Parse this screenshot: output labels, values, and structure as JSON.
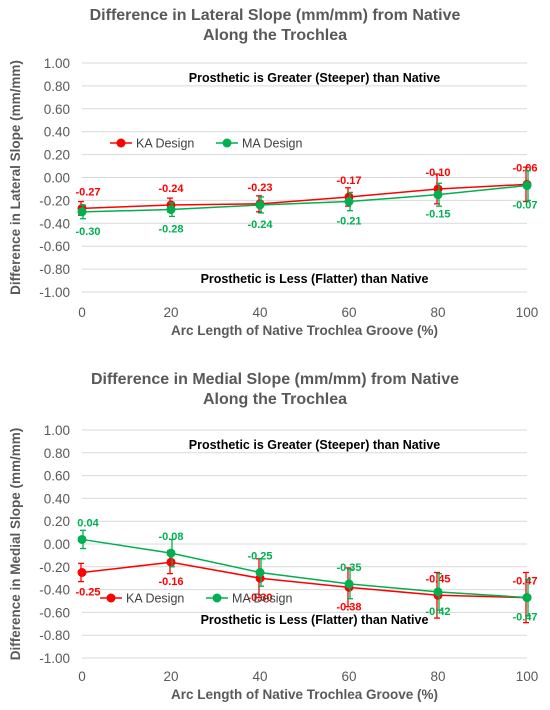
{
  "chart_data": [
    {
      "type": "line",
      "title": [
        "Difference in Lateral Slope (mm/mm) from Native",
        "Along the Trochlea"
      ],
      "xlabel": "Arc Length of Native Trochlea Groove (%)",
      "ylabel": "Difference in Lateral Slope (mm/mm)",
      "x": [
        0,
        20,
        40,
        60,
        80,
        100
      ],
      "xticks": [
        "0",
        "20",
        "40",
        "60",
        "80",
        "100"
      ],
      "xlim": [
        0,
        100
      ],
      "ylim": [
        -1.0,
        1.0
      ],
      "yticks": [
        "1.00",
        "0.80",
        "0.60",
        "0.40",
        "0.20",
        "0.00",
        "-0.20",
        "-0.40",
        "-0.60",
        "-0.80",
        "-1.00"
      ],
      "grid": "horizontal",
      "legend": "top-left",
      "annotation_top": "Prosthetic is Greater (Steeper) than Native",
      "annotation_bottom": "Prosthetic is Less (Flatter) than Native",
      "series": [
        {
          "name": "KA Design",
          "color": "#ff0000",
          "values": [
            -0.27,
            -0.24,
            -0.23,
            -0.17,
            -0.1,
            -0.06
          ],
          "labels": [
            "-0.27",
            "-0.24",
            "-0.23",
            "-0.17",
            "-0.10",
            "-0.06"
          ],
          "err": [
            0.06,
            0.06,
            0.07,
            0.08,
            0.13,
            0.15
          ],
          "label_pos": "above"
        },
        {
          "name": "MA Design",
          "color": "#00b050",
          "values": [
            -0.3,
            -0.28,
            -0.24,
            -0.21,
            -0.15,
            -0.07
          ],
          "labels": [
            "-0.30",
            "-0.28",
            "-0.24",
            "-0.21",
            "-0.15",
            "-0.07"
          ],
          "err": [
            0.06,
            0.06,
            0.07,
            0.08,
            0.1,
            0.13
          ],
          "label_pos": "below"
        }
      ]
    },
    {
      "type": "line",
      "title": [
        "Difference in Medial Slope (mm/mm) from Native",
        "Along the Trochlea"
      ],
      "xlabel": "Arc Length of Native Trochlea Groove (%)",
      "ylabel": "Difference in Medial Slope (mm/mm)",
      "x": [
        0,
        20,
        40,
        60,
        80,
        100
      ],
      "xticks": [
        "0",
        "20",
        "40",
        "60",
        "80",
        "100"
      ],
      "xlim": [
        0,
        100
      ],
      "ylim": [
        -1.0,
        1.0
      ],
      "yticks": [
        "1.00",
        "0.80",
        "0.60",
        "0.40",
        "0.20",
        "0.00",
        "-0.20",
        "-0.40",
        "-0.60",
        "-0.80",
        "-1.00"
      ],
      "grid": "horizontal",
      "legend": "bottom-left",
      "annotation_top": "Prosthetic is Greater (Steeper) than Native",
      "annotation_bottom": "Prosthetic is Less (Flatter) than Native",
      "series": [
        {
          "name": "KA Design",
          "color": "#ff0000",
          "values": [
            -0.25,
            -0.16,
            -0.3,
            -0.38,
            -0.45,
            -0.47
          ],
          "labels": [
            "-0.25",
            "-0.16",
            "-0.30",
            "-0.38",
            "-0.45",
            "-0.47"
          ],
          "err": [
            0.08,
            0.1,
            0.17,
            0.17,
            0.2,
            0.22
          ],
          "label_pos": [
            "below",
            "below",
            "below",
            "below",
            "above",
            "above"
          ]
        },
        {
          "name": "MA Design",
          "color": "#00b050",
          "values": [
            0.04,
            -0.08,
            -0.25,
            -0.35,
            -0.42,
            -0.47
          ],
          "labels": [
            "0.04",
            "-0.08",
            "-0.25",
            "-0.35",
            "-0.42",
            "-0.47"
          ],
          "err": [
            0.08,
            0.12,
            0.12,
            0.13,
            0.16,
            0.16
          ],
          "label_pos": [
            "above",
            "above",
            "above",
            "above",
            "below",
            "below"
          ]
        }
      ]
    }
  ]
}
